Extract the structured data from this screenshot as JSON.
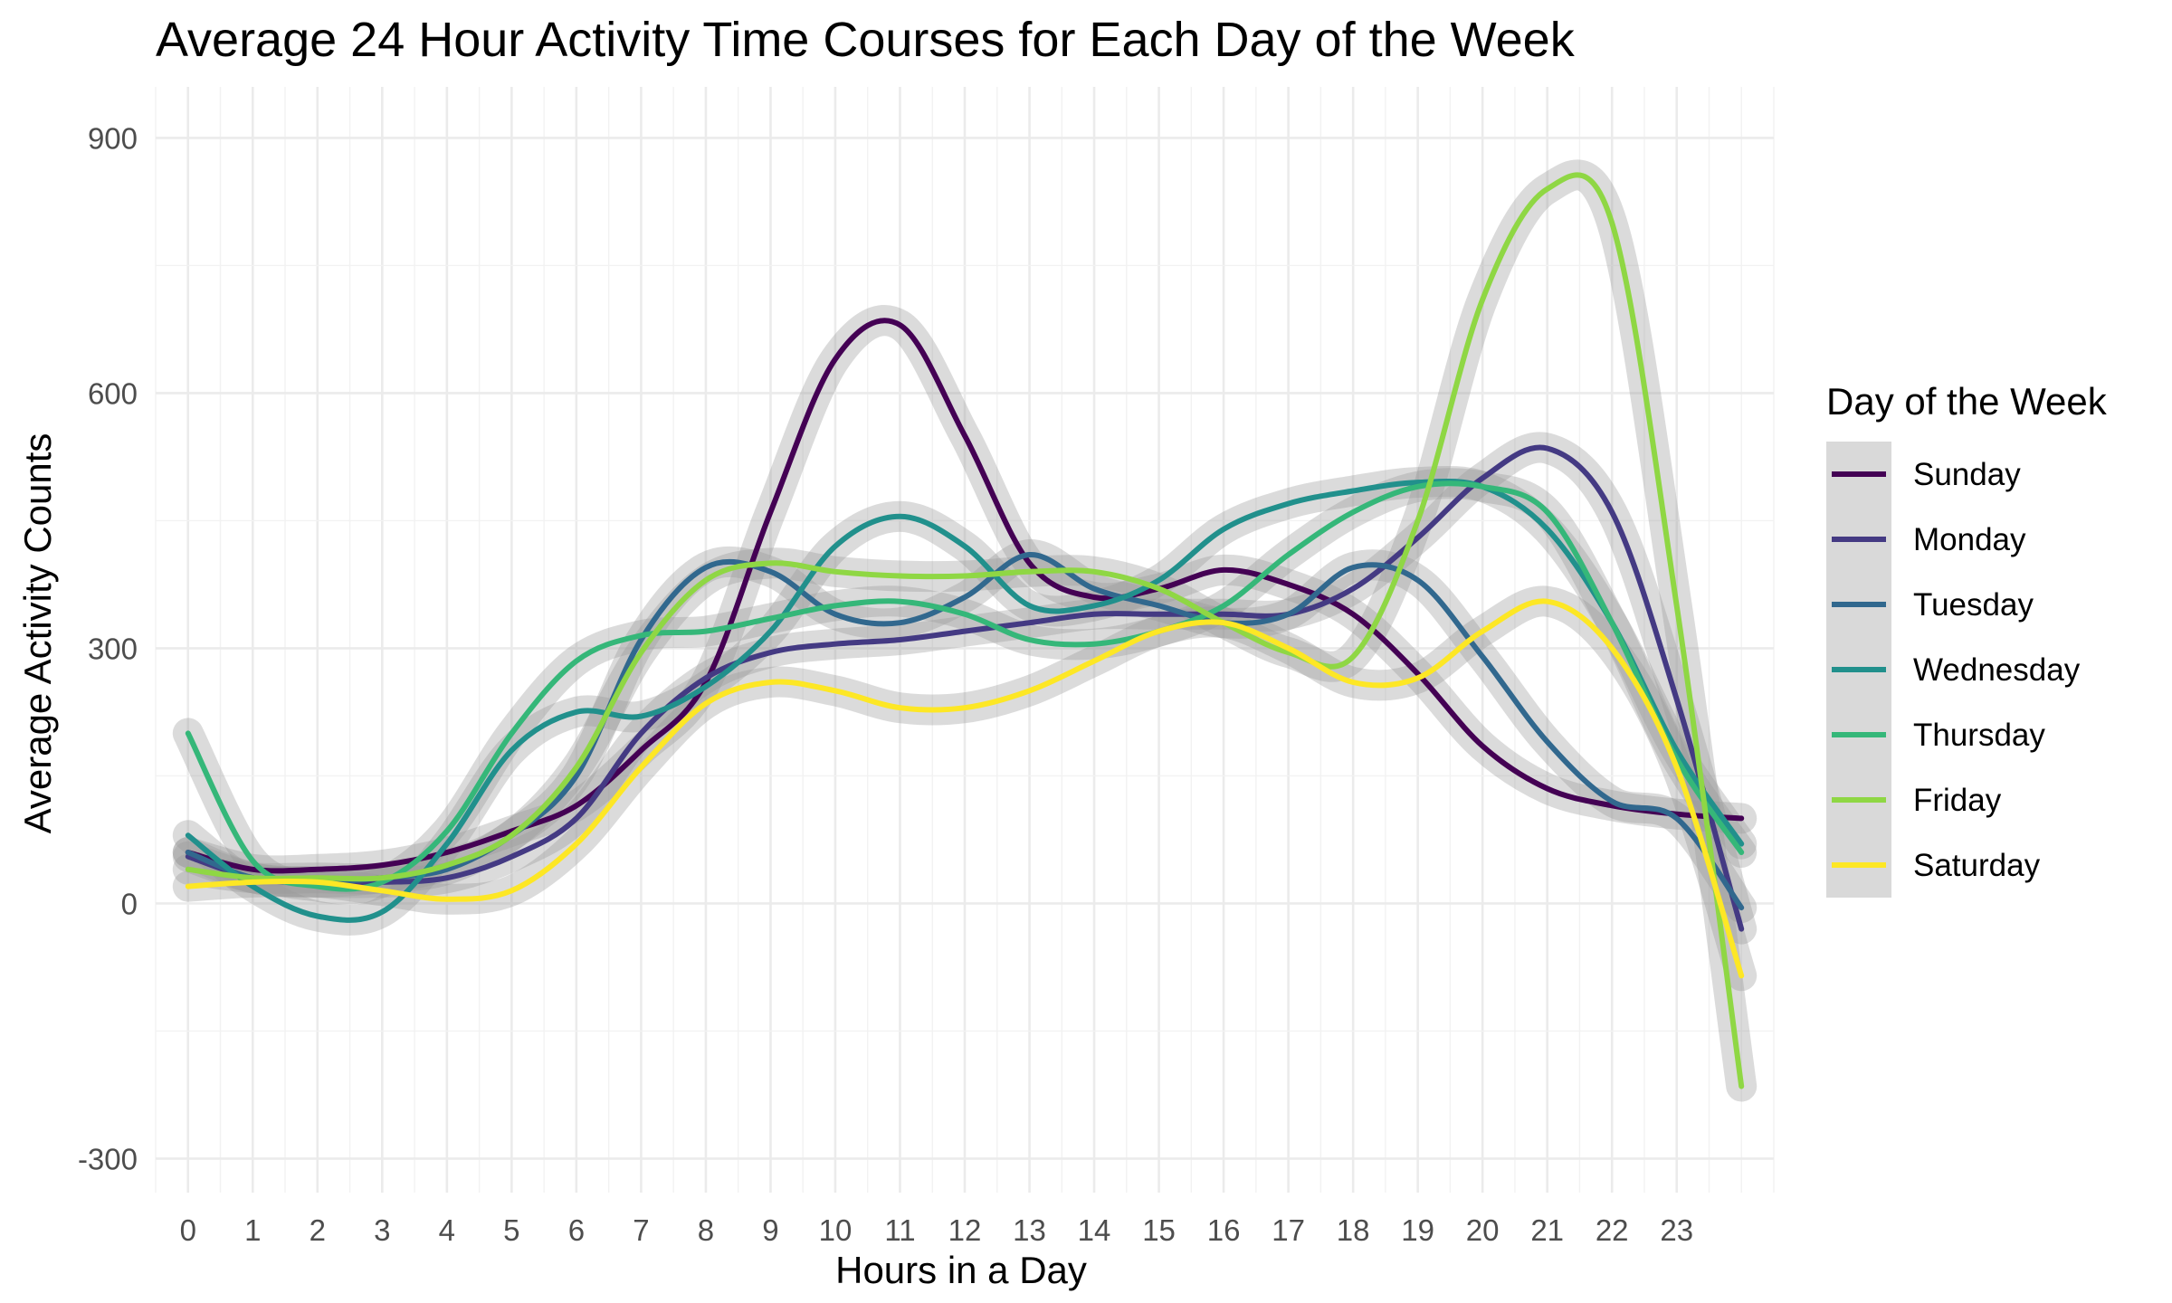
{
  "chart_data": {
    "type": "line",
    "title": "Average 24 Hour Activity Time Courses for Each Day of the Week",
    "xlabel": "Hours in a Day",
    "ylabel": "Average Activity Counts",
    "xlim": [
      -0.5,
      24.5
    ],
    "ylim": [
      -340,
      960
    ],
    "x_ticks": [
      0,
      1,
      2,
      3,
      4,
      5,
      6,
      7,
      8,
      9,
      10,
      11,
      12,
      13,
      14,
      15,
      16,
      17,
      18,
      19,
      20,
      21,
      22,
      23
    ],
    "y_ticks": [
      -300,
      0,
      300,
      600,
      900
    ],
    "grid": true,
    "legend": {
      "title": "Day of the Week",
      "position": "right"
    },
    "x": [
      0,
      1,
      2,
      3,
      4,
      5,
      6,
      7,
      8,
      9,
      10,
      11,
      12,
      13,
      14,
      15,
      16,
      17,
      18,
      19,
      20,
      21,
      22,
      23,
      24
    ],
    "series": [
      {
        "name": "Sunday",
        "color": "#440154",
        "values": [
          60,
          40,
          40,
          45,
          60,
          85,
          115,
          180,
          260,
          460,
          640,
          680,
          550,
          400,
          360,
          370,
          392,
          375,
          340,
          270,
          185,
          135,
          115,
          105,
          100
        ]
      },
      {
        "name": "Monday",
        "color": "#443A83",
        "values": [
          55,
          30,
          25,
          25,
          30,
          55,
          100,
          200,
          265,
          295,
          305,
          310,
          320,
          330,
          340,
          340,
          340,
          340,
          370,
          430,
          500,
          535,
          460,
          240,
          -30
        ]
      },
      {
        "name": "Tuesday",
        "color": "#31688E",
        "values": [
          60,
          30,
          25,
          30,
          40,
          80,
          150,
          310,
          395,
          390,
          340,
          330,
          360,
          410,
          370,
          350,
          330,
          340,
          395,
          380,
          290,
          190,
          120,
          100,
          -5
        ]
      },
      {
        "name": "Wednesday",
        "color": "#21908C",
        "values": [
          80,
          20,
          -15,
          -10,
          70,
          180,
          225,
          220,
          255,
          320,
          420,
          455,
          420,
          350,
          350,
          380,
          440,
          470,
          485,
          495,
          490,
          440,
          330,
          180,
          70
        ]
      },
      {
        "name": "Thursday",
        "color": "#35B779",
        "values": [
          200,
          50,
          20,
          25,
          85,
          200,
          285,
          315,
          320,
          335,
          350,
          355,
          340,
          310,
          305,
          320,
          350,
          410,
          460,
          490,
          490,
          460,
          330,
          170,
          60
        ]
      },
      {
        "name": "Friday",
        "color": "#8FD744",
        "values": [
          40,
          30,
          30,
          30,
          45,
          80,
          160,
          295,
          380,
          400,
          390,
          385,
          385,
          390,
          390,
          370,
          330,
          295,
          290,
          450,
          710,
          840,
          800,
          350,
          -215
        ]
      },
      {
        "name": "Saturday",
        "color": "#FDE725",
        "values": [
          20,
          25,
          25,
          15,
          5,
          15,
          70,
          160,
          235,
          260,
          250,
          230,
          230,
          250,
          285,
          320,
          330,
          300,
          260,
          265,
          320,
          355,
          300,
          160,
          -85
        ]
      }
    ]
  }
}
